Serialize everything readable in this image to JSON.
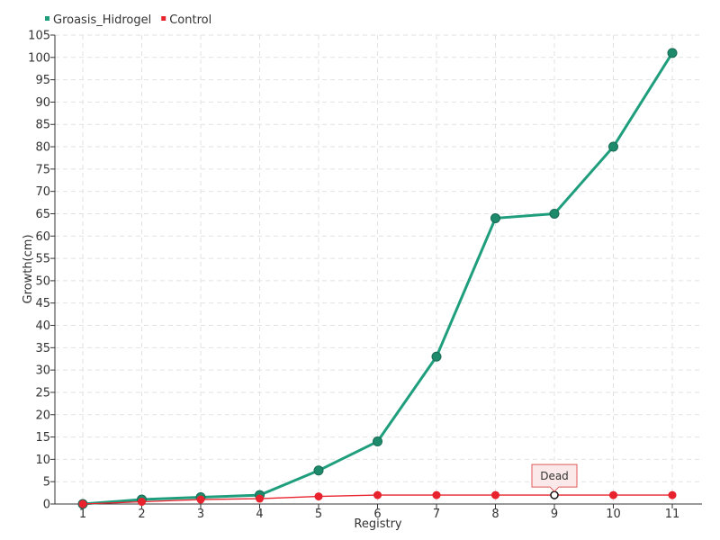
{
  "chart_data": {
    "type": "line",
    "categories": [
      "1",
      "2",
      "3",
      "4",
      "5",
      "6",
      "7",
      "8",
      "9",
      "10",
      "11"
    ],
    "series": [
      {
        "name": "Groasis_Hidrogel",
        "color": "#1f9e7d",
        "values": [
          0,
          1,
          1.5,
          2,
          7.5,
          14,
          33,
          64,
          65,
          80,
          101
        ]
      },
      {
        "name": "Control",
        "color": "#e8232d",
        "values": [
          0,
          0.5,
          1,
          1.2,
          1.7,
          2,
          2,
          2,
          2,
          2,
          2
        ]
      }
    ],
    "xlabel": "Registry",
    "ylabel": "Growth(cm)",
    "ylim": [
      0,
      105
    ],
    "ytick_step": 5,
    "grid": true,
    "legend_position": "top-left",
    "annotations": [
      {
        "text": "Dead",
        "series": "Control",
        "category": "9"
      }
    ]
  }
}
